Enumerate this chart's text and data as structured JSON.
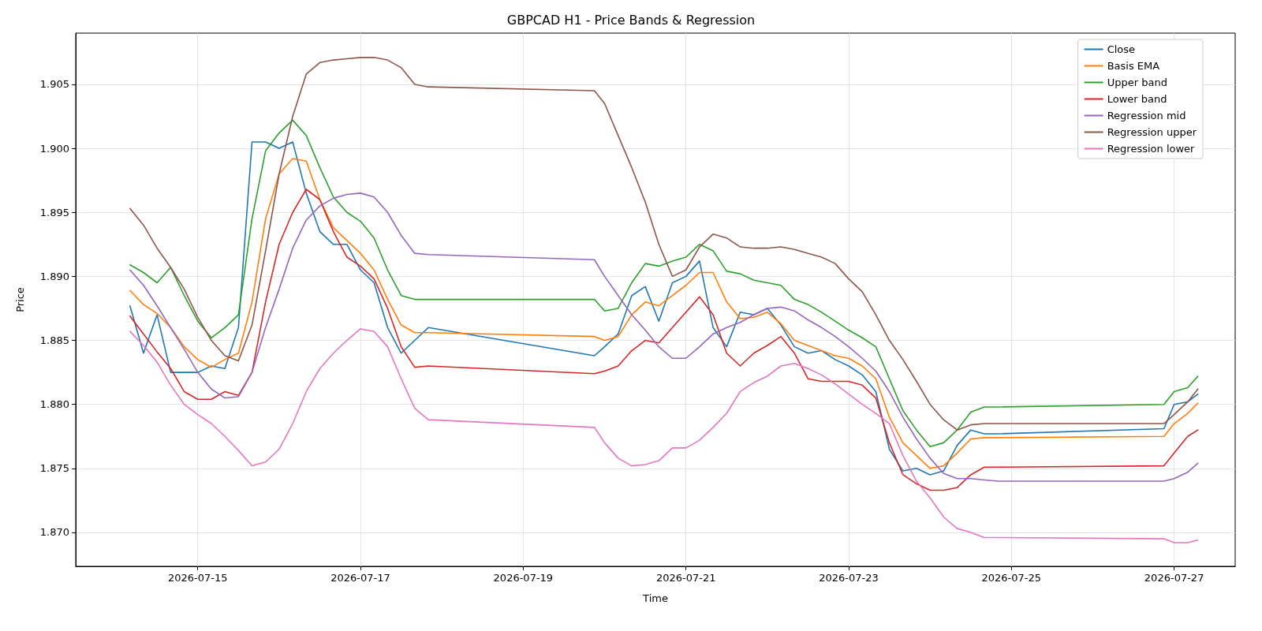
{
  "chart_data": {
    "type": "line",
    "title": "GBPCAD H1 - Price Bands & Regression",
    "xlabel": "Time",
    "ylabel": "Price",
    "x": [
      "2026-07-14T04:00",
      "2026-07-14T08:00",
      "2026-07-14T12:00",
      "2026-07-14T16:00",
      "2026-07-14T20:00",
      "2026-07-15T00:00",
      "2026-07-15T04:00",
      "2026-07-15T08:00",
      "2026-07-15T12:00",
      "2026-07-15T16:00",
      "2026-07-15T20:00",
      "2026-07-16T00:00",
      "2026-07-16T04:00",
      "2026-07-16T08:00",
      "2026-07-16T12:00",
      "2026-07-16T16:00",
      "2026-07-16T20:00",
      "2026-07-17T00:00",
      "2026-07-17T04:00",
      "2026-07-17T08:00",
      "2026-07-17T12:00",
      "2026-07-17T16:00",
      "2026-07-17T20:00",
      "2026-07-19T21:00",
      "2026-07-20T00:00",
      "2026-07-20T04:00",
      "2026-07-20T08:00",
      "2026-07-20T12:00",
      "2026-07-20T16:00",
      "2026-07-20T20:00",
      "2026-07-21T00:00",
      "2026-07-21T04:00",
      "2026-07-21T08:00",
      "2026-07-21T12:00",
      "2026-07-21T16:00",
      "2026-07-21T20:00",
      "2026-07-22T00:00",
      "2026-07-22T04:00",
      "2026-07-22T08:00",
      "2026-07-22T12:00",
      "2026-07-22T16:00",
      "2026-07-22T20:00",
      "2026-07-23T00:00",
      "2026-07-23T04:00",
      "2026-07-23T08:00",
      "2026-07-23T12:00",
      "2026-07-23T16:00",
      "2026-07-23T20:00",
      "2026-07-24T00:00",
      "2026-07-24T04:00",
      "2026-07-24T08:00",
      "2026-07-24T12:00",
      "2026-07-24T16:00",
      "2026-07-24T20:00",
      "2026-07-26T21:00",
      "2026-07-27T00:00",
      "2026-07-27T04:00",
      "2026-07-27T07:00"
    ],
    "series": [
      {
        "name": "Close",
        "color": "#1f77b4",
        "values": [
          1.8877,
          1.884,
          1.887,
          1.8825,
          1.8825,
          1.8825,
          1.883,
          1.8828,
          1.886,
          1.9005,
          1.9005,
          1.9,
          1.9005,
          1.8965,
          1.8935,
          1.8925,
          1.8925,
          1.8905,
          1.8895,
          1.886,
          1.884,
          1.885,
          1.886,
          1.8838,
          1.8845,
          1.8855,
          1.8885,
          1.8892,
          1.8865,
          1.8895,
          1.89,
          1.8912,
          1.886,
          1.8845,
          1.8872,
          1.887,
          1.8875,
          1.8862,
          1.8845,
          1.884,
          1.8842,
          1.8835,
          1.883,
          1.8823,
          1.881,
          1.8765,
          1.8748,
          1.875,
          1.8745,
          1.8748,
          1.8768,
          1.878,
          1.8777,
          1.8777,
          1.8781,
          1.88,
          1.8802,
          1.8808
        ]
      },
      {
        "name": "Basis EMA",
        "color": "#ff7f0e",
        "values": [
          1.8889,
          1.8878,
          1.8871,
          1.886,
          1.8845,
          1.8835,
          1.8829,
          1.8835,
          1.884,
          1.888,
          1.8945,
          1.898,
          1.8992,
          1.899,
          1.896,
          1.8938,
          1.8928,
          1.8918,
          1.8905,
          1.8882,
          1.8862,
          1.8856,
          1.8856,
          1.8853,
          1.885,
          1.8853,
          1.887,
          1.888,
          1.8877,
          1.8885,
          1.8893,
          1.8903,
          1.8903,
          1.888,
          1.8867,
          1.8868,
          1.8872,
          1.8863,
          1.885,
          1.8846,
          1.8842,
          1.8838,
          1.8836,
          1.883,
          1.882,
          1.879,
          1.877,
          1.876,
          1.875,
          1.8752,
          1.8762,
          1.8773,
          1.8774,
          1.8774,
          1.8775,
          1.8785,
          1.8793,
          1.8801
        ]
      },
      {
        "name": "Upper band",
        "color": "#2ca02c",
        "values": [
          1.8909,
          1.8903,
          1.8895,
          1.8907,
          1.8885,
          1.8865,
          1.8852,
          1.886,
          1.887,
          1.8945,
          1.8998,
          1.9012,
          1.9022,
          1.901,
          1.8985,
          1.8962,
          1.895,
          1.8943,
          1.893,
          1.8905,
          1.8885,
          1.8882,
          1.8882,
          1.8882,
          1.8873,
          1.8875,
          1.8895,
          1.891,
          1.8908,
          1.8912,
          1.8915,
          1.8925,
          1.892,
          1.8904,
          1.8902,
          1.8897,
          1.8895,
          1.8893,
          1.8882,
          1.8878,
          1.8872,
          1.8865,
          1.8858,
          1.8852,
          1.8845,
          1.882,
          1.8795,
          1.878,
          1.8767,
          1.877,
          1.878,
          1.8794,
          1.8798,
          1.8798,
          1.88,
          1.881,
          1.8813,
          1.8822
        ]
      },
      {
        "name": "Lower band",
        "color": "#d62728",
        "values": [
          1.8869,
          1.8855,
          1.8841,
          1.8828,
          1.881,
          1.8804,
          1.8804,
          1.881,
          1.8807,
          1.8825,
          1.888,
          1.8925,
          1.895,
          1.8968,
          1.896,
          1.8935,
          1.8915,
          1.8908,
          1.8898,
          1.8875,
          1.8845,
          1.8829,
          1.883,
          1.8824,
          1.8826,
          1.883,
          1.8842,
          1.885,
          1.8848,
          1.886,
          1.8872,
          1.8884,
          1.887,
          1.884,
          1.883,
          1.884,
          1.8846,
          1.8853,
          1.884,
          1.882,
          1.8818,
          1.8818,
          1.8818,
          1.8815,
          1.8805,
          1.877,
          1.8745,
          1.8738,
          1.8733,
          1.8733,
          1.8735,
          1.8745,
          1.8751,
          1.8751,
          1.8752,
          1.8762,
          1.8775,
          1.878
        ]
      },
      {
        "name": "Regression mid",
        "color": "#9467bd",
        "values": [
          1.8905,
          1.8893,
          1.8877,
          1.886,
          1.8843,
          1.8825,
          1.8812,
          1.8805,
          1.8806,
          1.8825,
          1.886,
          1.889,
          1.8922,
          1.8944,
          1.8955,
          1.8961,
          1.8964,
          1.8965,
          1.8962,
          1.895,
          1.8932,
          1.8918,
          1.8917,
          1.8913,
          1.89,
          1.8885,
          1.887,
          1.8858,
          1.8845,
          1.8836,
          1.8836,
          1.8845,
          1.8855,
          1.886,
          1.8864,
          1.887,
          1.8875,
          1.8876,
          1.8873,
          1.8866,
          1.886,
          1.8853,
          1.8845,
          1.8836,
          1.8826,
          1.881,
          1.879,
          1.8773,
          1.8758,
          1.8746,
          1.8742,
          1.8742,
          1.8741,
          1.874,
          1.874,
          1.8742,
          1.8747,
          1.8754
        ]
      },
      {
        "name": "Regression upper",
        "color": "#8c564b",
        "values": [
          1.8953,
          1.894,
          1.8922,
          1.8907,
          1.889,
          1.8868,
          1.885,
          1.8838,
          1.8834,
          1.8862,
          1.892,
          1.898,
          1.9025,
          1.9058,
          1.9067,
          1.9069,
          1.907,
          1.9071,
          1.9071,
          1.9069,
          1.9063,
          1.905,
          1.9048,
          1.9045,
          1.9035,
          1.901,
          1.8985,
          1.8958,
          1.8925,
          1.89,
          1.8905,
          1.8923,
          1.8933,
          1.893,
          1.8923,
          1.8922,
          1.8922,
          1.8923,
          1.8921,
          1.8918,
          1.8915,
          1.891,
          1.8898,
          1.8888,
          1.887,
          1.885,
          1.8835,
          1.8818,
          1.88,
          1.8788,
          1.878,
          1.8784,
          1.8785,
          1.8785,
          1.8785,
          1.8792,
          1.8802,
          1.8812
        ]
      },
      {
        "name": "Regression lower",
        "color": "#e377c2",
        "values": [
          1.8857,
          1.8846,
          1.8833,
          1.8815,
          1.88,
          1.8792,
          1.8785,
          1.8775,
          1.8764,
          1.8752,
          1.8755,
          1.8765,
          1.8785,
          1.881,
          1.8828,
          1.884,
          1.885,
          1.8859,
          1.8857,
          1.8845,
          1.882,
          1.8797,
          1.8788,
          1.8782,
          1.877,
          1.8758,
          1.8752,
          1.8753,
          1.8756,
          1.8766,
          1.8766,
          1.8772,
          1.8782,
          1.8793,
          1.881,
          1.8817,
          1.8822,
          1.883,
          1.8832,
          1.8828,
          1.8823,
          1.8816,
          1.8808,
          1.88,
          1.8793,
          1.8785,
          1.876,
          1.874,
          1.8727,
          1.8712,
          1.8703,
          1.87,
          1.8696,
          1.8696,
          1.8695,
          1.8692,
          1.8692,
          1.8694
        ]
      }
    ],
    "xlim": [
      "2026-07-13T12:00",
      "2026-07-27T18:00"
    ],
    "xticks": [
      {
        "value": "2026-07-15",
        "label": "2026-07-15"
      },
      {
        "value": "2026-07-17",
        "label": "2026-07-17"
      },
      {
        "value": "2026-07-19",
        "label": "2026-07-19"
      },
      {
        "value": "2026-07-21",
        "label": "2026-07-21"
      },
      {
        "value": "2026-07-23",
        "label": "2026-07-23"
      },
      {
        "value": "2026-07-25",
        "label": "2026-07-25"
      },
      {
        "value": "2026-07-27",
        "label": "2026-07-27"
      }
    ],
    "ylim": [
      1.86735,
      1.909
    ],
    "yticks": [
      {
        "value": 1.87,
        "label": "1.870"
      },
      {
        "value": 1.875,
        "label": "1.875"
      },
      {
        "value": 1.88,
        "label": "1.880"
      },
      {
        "value": 1.885,
        "label": "1.885"
      },
      {
        "value": 1.89,
        "label": "1.890"
      },
      {
        "value": 1.895,
        "label": "1.895"
      },
      {
        "value": 1.9,
        "label": "1.900"
      },
      {
        "value": 1.905,
        "label": "1.905"
      }
    ],
    "grid": true,
    "legend": "top right",
    "marker": "none",
    "line_style": "solid"
  }
}
